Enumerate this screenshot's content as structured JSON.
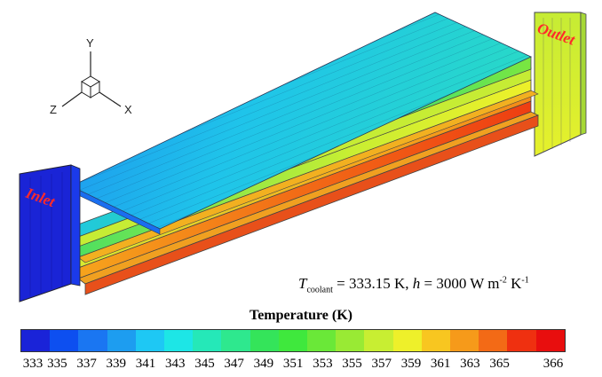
{
  "axes": {
    "y": "Y",
    "z": "Z",
    "x": "X"
  },
  "inlet_label": "Inlet",
  "outlet_label": "Outlet",
  "equation": {
    "T_symbol": "T",
    "T_subscript": "coolant",
    "T_value": " = 333.15 K,  ",
    "h_symbol": "h",
    "h_value": " = 3000 W m",
    "unit_exp1": "-2",
    "unit_K": " K",
    "unit_exp2": "-1"
  },
  "colorbar": {
    "title": "Temperature (K)",
    "tick_labels": [
      "333",
      "335",
      "337",
      "339",
      "341",
      "343",
      "345",
      "347",
      "349",
      "351",
      "353",
      "355",
      "357",
      "359",
      "361",
      "363",
      "365",
      "366"
    ],
    "colors": [
      "#1a23d8",
      "#0d4ff0",
      "#1a76f2",
      "#1d9df0",
      "#1ec8f4",
      "#1de6e6",
      "#25e8b8",
      "#2ee88e",
      "#34e45a",
      "#3fe83d",
      "#6ae838",
      "#99ea34",
      "#c8ee32",
      "#eef02a",
      "#f8c620",
      "#f69a1a",
      "#f36a16",
      "#ef3010",
      "#e80e0e"
    ]
  }
}
